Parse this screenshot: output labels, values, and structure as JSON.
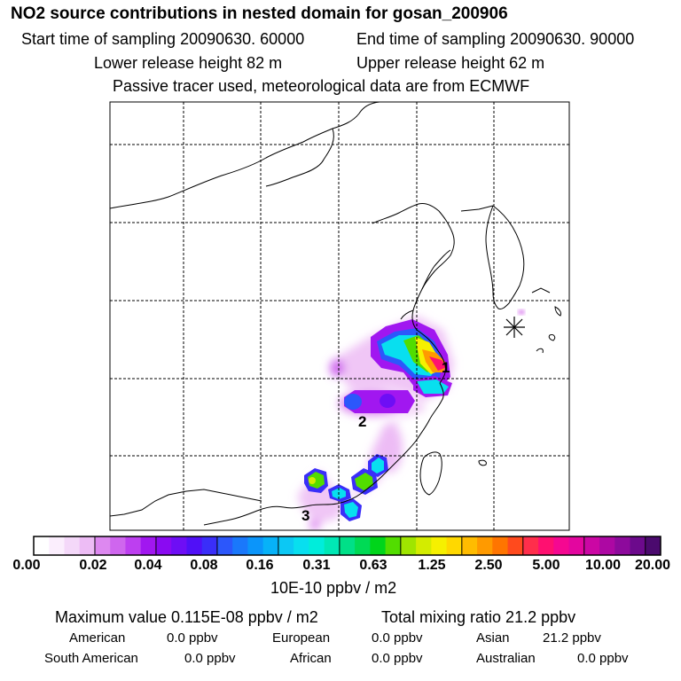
{
  "header": {
    "title": "NO2 source contributions in nested domain for gosan_200906",
    "start_time": "Start time of sampling 20090630. 60000",
    "end_time": "End time of sampling 20090630. 90000",
    "lower_height": "Lower release height   82 m",
    "upper_height": "Upper release height   62 m",
    "tracer_note": "Passive tracer used, meteorological data are from ECMWF"
  },
  "map": {
    "region_labels": [
      "1",
      "2",
      "3"
    ],
    "receptor_marker": "asterisk"
  },
  "colorbar": {
    "ticks": [
      "0.00",
      "0.02",
      "0.04",
      "0.08",
      "0.16",
      "0.31",
      "0.63",
      "1.25",
      "2.50",
      "5.00",
      "10.00",
      "20.00"
    ],
    "colors": [
      "#ffffff",
      "#fbeefd",
      "#f4d8f9",
      "#edbcf5",
      "#dd88f0",
      "#cf66ee",
      "#bd3ff0",
      "#a117f0",
      "#8a0af2",
      "#6e0ef5",
      "#5010f7",
      "#3a2ef9",
      "#2c57fb",
      "#1a78fb",
      "#0b95fa",
      "#07b2f8",
      "#0cc8f4",
      "#08dfef",
      "#00eddb",
      "#00e8b5",
      "#00e088",
      "#00da55",
      "#00d51b",
      "#52dd00",
      "#9fe500",
      "#d3ec00",
      "#f6f000",
      "#ffd800",
      "#ffbc00",
      "#ff9a00",
      "#ff7500",
      "#ff4a1d",
      "#ff2e4b",
      "#ff1070",
      "#f50891",
      "#e3069f",
      "#cb07a4",
      "#ad08a3",
      "#8d0a9c",
      "#6c0a8c",
      "#4b0a6e"
    ],
    "units": "10E-10 ppbv / m2"
  },
  "summary": {
    "max_value": "Maximum value  0.115E-08 ppbv / m2",
    "total": "Total mixing ratio       21.2 ppbv",
    "sources": [
      {
        "name": "American",
        "value": "0.0 ppbv"
      },
      {
        "name": "European",
        "value": "0.0 ppbv"
      },
      {
        "name": "Asian",
        "value": "21.2 ppbv"
      },
      {
        "name": "South American",
        "value": "0.0 ppbv"
      },
      {
        "name": "African",
        "value": "0.0 ppbv"
      },
      {
        "name": "Australian",
        "value": "0.0 ppbv"
      }
    ]
  }
}
